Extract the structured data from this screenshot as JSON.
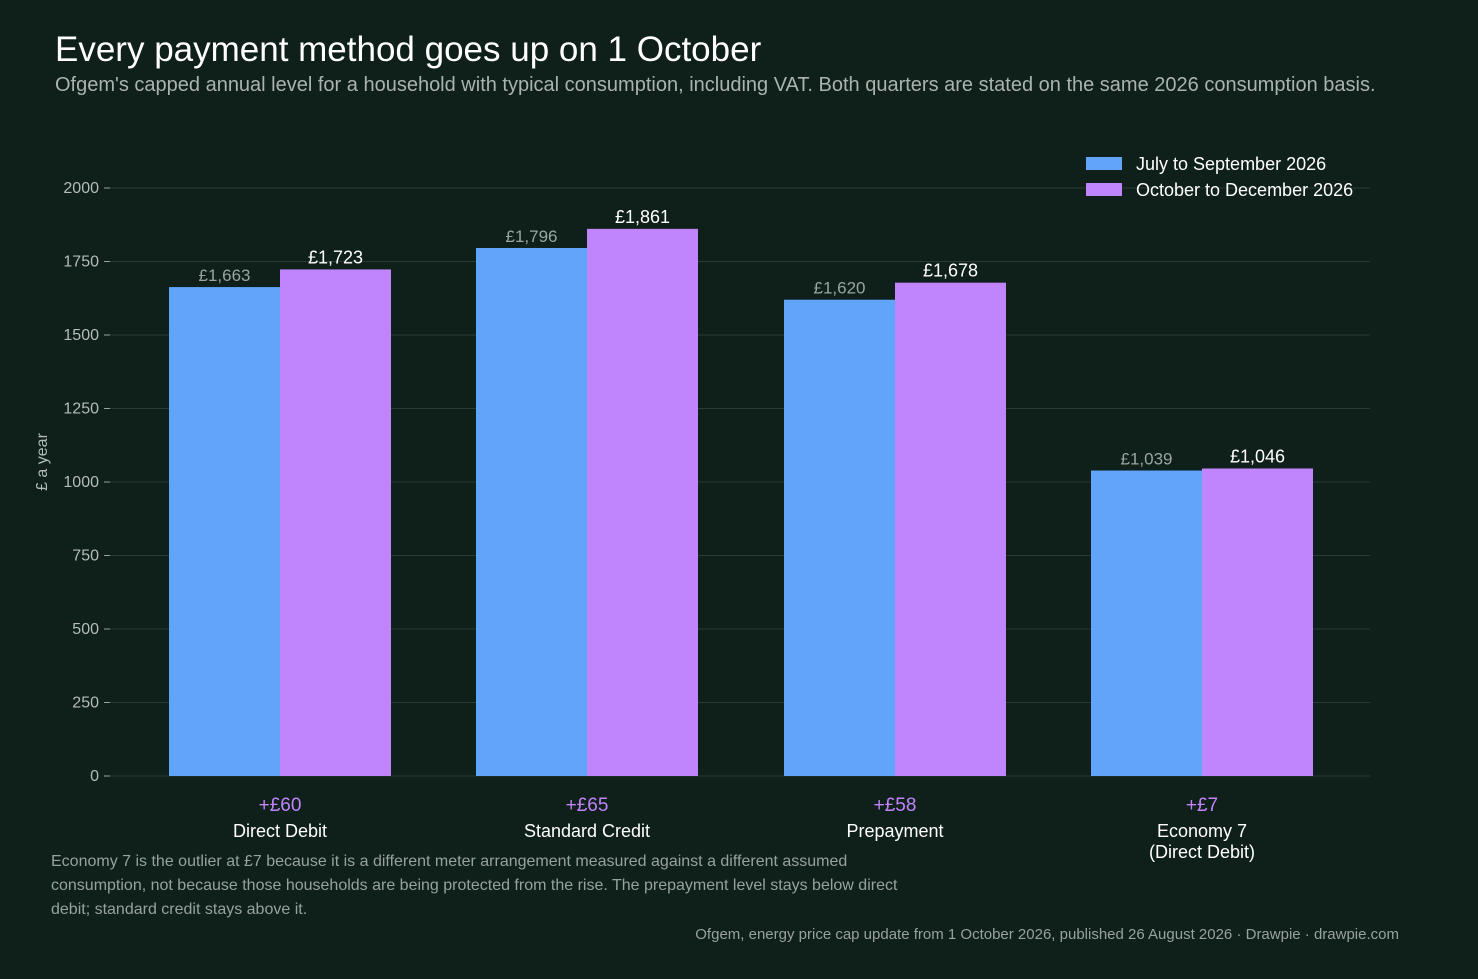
{
  "title": "Every payment method goes up on 1 October",
  "subtitle": "Ofgem's capped annual level for a household with typical consumption, including VAT. Both quarters are stated on the same 2026 consumption basis.",
  "note": "Economy 7 is the outlier at £7 because it is a different meter arrangement measured against a different assumed consumption, not because those households are being protected from the rise. The prepayment level stays below direct debit; standard credit stays above it.",
  "source": "Ofgem, energy price cap update from 1 October 2026, published 26 August 2026  ·  Drawpie · drawpie.com",
  "colors": {
    "background": "#0f1f1a",
    "series1": "#60a5fa",
    "series2": "#c084fc",
    "grid": "#2a3a34",
    "muted": "#98a29d"
  },
  "chart_data": {
    "type": "bar",
    "ylabel": "£ a year",
    "ylim": [
      0,
      2000
    ],
    "yticks": [
      "0",
      "250",
      "500",
      "750",
      "1000",
      "1250",
      "1500",
      "1750",
      "2000"
    ],
    "grid": true,
    "legend_position": "top-right",
    "categories": [
      "Direct Debit",
      "Standard Credit",
      "Prepayment",
      "Economy 7\n(Direct Debit)"
    ],
    "changes": [
      "+£60",
      "+£65",
      "+£58",
      "+£7"
    ],
    "series": [
      {
        "name": "July to September 2026",
        "values": [
          1663,
          1796,
          1620,
          1039
        ],
        "labels": [
          "£1,663",
          "£1,796",
          "£1,620",
          "£1,039"
        ]
      },
      {
        "name": "October to December 2026",
        "values": [
          1723,
          1861,
          1678,
          1046
        ],
        "labels": [
          "£1,723",
          "£1,861",
          "£1,678",
          "£1,046"
        ]
      }
    ]
  }
}
